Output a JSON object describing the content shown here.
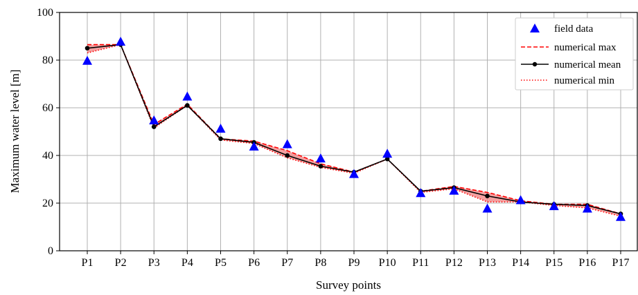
{
  "chart_data": {
    "type": "line",
    "xlabel": "Survey points",
    "ylabel": "Maximum water level [m]",
    "ylim": [
      0,
      100
    ],
    "yticks": [
      0,
      20,
      40,
      60,
      80,
      100
    ],
    "grid": true,
    "legend_position": "top-right",
    "categories": [
      "P1",
      "P2",
      "P3",
      "P4",
      "P5",
      "P6",
      "P7",
      "P8",
      "P9",
      "P10",
      "P11",
      "P12",
      "P13",
      "P14",
      "P15",
      "P16",
      "P17"
    ],
    "series": [
      {
        "name": "field data",
        "style": "triangle-marker",
        "color": "#0000ff",
        "values": [
          79.5,
          87.5,
          54.5,
          64.5,
          51,
          43.5,
          44.5,
          38.5,
          32,
          40.5,
          24,
          25,
          17.5,
          21,
          18.5,
          17.5,
          14
        ]
      },
      {
        "name": "numerical max",
        "style": "dashed",
        "color": "#ff0000",
        "values": [
          86.5,
          86.5,
          53,
          61.5,
          47,
          46,
          42,
          36.5,
          33,
          38.5,
          25,
          27,
          24.5,
          21,
          19.5,
          19.5,
          15.5
        ]
      },
      {
        "name": "numerical mean",
        "style": "solid-dot",
        "color": "#000000",
        "values": [
          85,
          86.5,
          52,
          61,
          47,
          45.5,
          40,
          35.5,
          33,
          38.5,
          25,
          26.5,
          23,
          20.5,
          19.5,
          19,
          15.5
        ]
      },
      {
        "name": "numerical min",
        "style": "dotted",
        "color": "#ff0000",
        "values": [
          83,
          86.5,
          51.5,
          61,
          46.5,
          45,
          39,
          35,
          32.5,
          38.5,
          24.5,
          26,
          20.5,
          20.5,
          19,
          18,
          14.5
        ]
      }
    ],
    "band_color": "#f08080"
  }
}
